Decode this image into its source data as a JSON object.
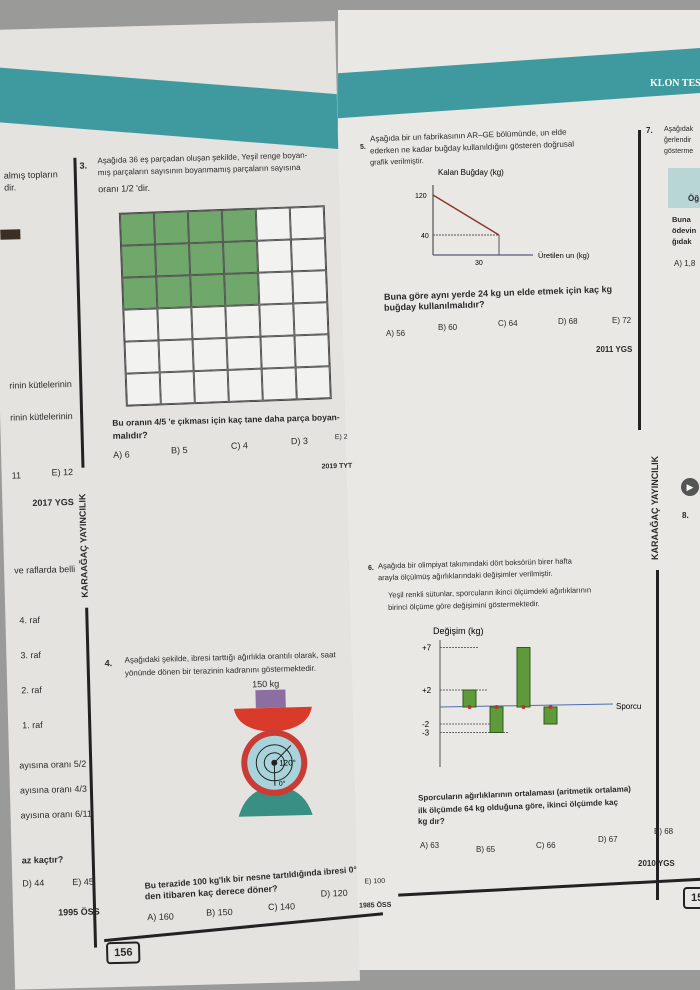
{
  "header": {
    "right_title": "KLON TES"
  },
  "publisher": "KARAAĞAÇ YAYINCILIK",
  "left_page": {
    "page_number": "156",
    "edge_text": [
      "almış topların",
      "dir.",
      "rinin kütlelerinin",
      "rinin kütlelerinin",
      "11",
      "E) 12",
      "2017 YGS",
      "ve raflarda belli",
      "4. raf",
      "3. raf",
      "2. raf",
      "1. raf",
      "ayısına oranı 5/2",
      "ayısına oranı 4/3",
      "ayısına oranı 6/11",
      "az kaçtır?",
      "D) 44",
      "E) 45",
      "1995 ÖSS"
    ],
    "q3": {
      "number": "3.",
      "text1": "Aşağıda 36 eş parçadan oluşan şekilde, Yeşil renge boyan-",
      "text2": "mış parçaların sayısının boyanmamış parçaların sayısına",
      "text3": "oranı 1/2 'dir.",
      "question1": "Bu oranın 4/5 'e çıkması için kaç tane daha parça boyan-",
      "question2": "malıdır?",
      "options": [
        "A) 6",
        "B) 5",
        "C) 4",
        "D) 3",
        "E) 2"
      ],
      "source": "2019 TYT",
      "grid_rows": 6,
      "grid_cols": 6,
      "green_cells": 12,
      "green_color": "#6fa86a"
    },
    "q4": {
      "number": "4.",
      "text1": "Aşağıdaki şekilde, ibresi tarttığı ağırlıkla orantılı olarak, saat",
      "text2": "yönünde dönen bir terazinin kadranını göstermektedir.",
      "weight_label": "150 kg",
      "dial_angle": "120°",
      "dial_zero": "0°",
      "question1": "Bu terazide 100 kg'lık bir nesne tartıldığında ibresi 0°",
      "question2": "den itibaren kaç derece döner?",
      "options": [
        "A) 160",
        "B) 150",
        "C) 140",
        "D) 120",
        "E) 100"
      ],
      "source": "1985 ÖSS"
    }
  },
  "right_page": {
    "q5": {
      "number": "5.",
      "text1": "Aşağıda bir un fabrikasının AR–GE bölümünde, un elde",
      "text2": "ederken ne kadar buğday kullanıldığını gösteren doğrusal",
      "text3": "grafik verilmiştir.",
      "question1": "Buna göre aynı yerde 24 kg un elde etmek için kaç kg",
      "question2": "buğday kullanılmalıdır?",
      "options": [
        "A) 56",
        "B) 60",
        "C) 64",
        "D) 68",
        "E) 72"
      ],
      "source": "2011 YGS",
      "chart": {
        "type": "line",
        "ylabel": "Kalan Buğday (kg)",
        "xlabel": "Üretilen un (kg)",
        "x": [
          0,
          30
        ],
        "y": [
          120,
          40
        ],
        "yticks": [
          "120",
          "40"
        ],
        "xticks": [
          "30"
        ]
      }
    },
    "q6": {
      "number": "6.",
      "text1": "Aşağıda bir olimpiyat takımındaki dört boksörün birer hafta",
      "text2": "arayla ölçülmüş ağırlıklarındaki değişimler verilmiştir.",
      "text3": "Yeşil renkli sütunlar, sporcuların ikinci ölçümdeki ağırlıklarının",
      "text4": "birinci ölçüme göre değişimini göstermektedir.",
      "question1": "Sporcuların ağırlıklarının ortalaması (aritmetik ortalama)",
      "question2": "ilk ölçümde 64 kg olduğuna göre, ikinci ölçümde kaç",
      "question3": "kg dır?",
      "options": [
        "A) 63",
        "B) 65",
        "C) 66",
        "D) 67",
        "E) 68"
      ],
      "source": "2010 YGS",
      "chart": {
        "type": "bar",
        "ylabel": "Değişim (kg)",
        "xlabel": "Sporcu",
        "values": [
          2,
          -3,
          7,
          -2
        ],
        "yticks": [
          "+7",
          "+2",
          "-2",
          "-3"
        ],
        "bar_color": "#5f9a3a"
      }
    },
    "q7": {
      "number": "7.",
      "lines": [
        "Aşağıdak",
        "ğerlendir",
        "gösterme",
        "Öğ",
        "Buna",
        "ödevin",
        "ğıdak",
        "A) 1,8"
      ]
    },
    "edge_marks": [
      "8."
    ],
    "page_number": "15"
  }
}
